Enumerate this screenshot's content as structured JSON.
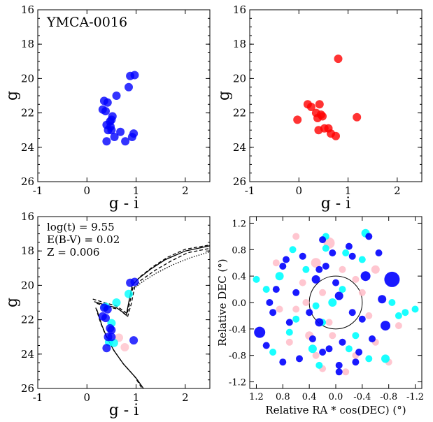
{
  "chart_data": [
    {
      "id": "tl",
      "type": "scatter",
      "annotation": "YMCA-0016",
      "xlabel": "g - i",
      "ylabel": "g",
      "xlim": [
        -1,
        2.5
      ],
      "ylim": [
        26,
        16
      ],
      "xticks": [
        "-1",
        "0",
        "1",
        "2"
      ],
      "yticks": [
        "16",
        "18",
        "20",
        "22",
        "24",
        "26"
      ],
      "series": [
        {
          "color": "#0000ff",
          "points": [
            [
              0.88,
              19.85
            ],
            [
              0.97,
              19.8
            ],
            [
              0.85,
              20.5
            ],
            [
              0.6,
              21.0
            ],
            [
              0.35,
              21.3
            ],
            [
              0.42,
              21.4
            ],
            [
              0.32,
              21.8
            ],
            [
              0.38,
              21.9
            ],
            [
              0.52,
              22.2
            ],
            [
              0.5,
              22.4
            ],
            [
              0.47,
              22.5
            ],
            [
              0.4,
              22.7
            ],
            [
              0.48,
              22.8
            ],
            [
              0.43,
              23.0
            ],
            [
              0.5,
              23.0
            ],
            [
              0.68,
              23.1
            ],
            [
              0.95,
              23.2
            ],
            [
              0.92,
              23.4
            ],
            [
              0.56,
              23.4
            ],
            [
              0.78,
              23.65
            ],
            [
              0.4,
              23.65
            ]
          ]
        }
      ]
    },
    {
      "id": "tr",
      "type": "scatter",
      "xlabel": "g - i",
      "ylabel": "g",
      "xlim": [
        -1,
        2.5
      ],
      "ylim": [
        26,
        16
      ],
      "xticks": [
        "-1",
        "0",
        "1",
        "2"
      ],
      "yticks": [
        "16",
        "18",
        "20",
        "22",
        "24",
        "26"
      ],
      "series": [
        {
          "color": "#ff0000",
          "points": [
            [
              0.8,
              18.85
            ],
            [
              0.18,
              21.5
            ],
            [
              0.25,
              21.65
            ],
            [
              0.42,
              21.5
            ],
            [
              0.35,
              22.0
            ],
            [
              0.45,
              22.1
            ],
            [
              0.38,
              22.3
            ],
            [
              0.48,
              22.2
            ],
            [
              -0.03,
              22.4
            ],
            [
              1.18,
              22.25
            ],
            [
              0.52,
              22.9
            ],
            [
              0.6,
              22.9
            ],
            [
              0.4,
              23.0
            ],
            [
              0.65,
              23.2
            ],
            [
              0.75,
              23.35
            ]
          ]
        }
      ]
    },
    {
      "id": "bl",
      "type": "scatter",
      "annotation": [
        "log(t) = 9.55",
        "E(B-V) = 0.02",
        "Z = 0.006"
      ],
      "xlabel": "g - i",
      "ylabel": "g",
      "xlim": [
        -1,
        2.5
      ],
      "ylim": [
        26,
        16
      ],
      "xticks": [
        "-1",
        "0",
        "1",
        "2"
      ],
      "yticks": [
        "16",
        "18",
        "20",
        "22",
        "24",
        "26"
      ],
      "isochrones": [
        {
          "style": "solid",
          "points": [
            [
              0.15,
              20.95
            ],
            [
              0.38,
              21.15
            ],
            [
              0.6,
              21.3
            ],
            [
              0.75,
              21.6
            ],
            [
              0.8,
              21.75
            ],
            [
              0.85,
              21.0
            ],
            [
              0.92,
              20.0
            ],
            [
              1.05,
              19.6
            ],
            [
              1.3,
              19.05
            ],
            [
              1.6,
              18.5
            ],
            [
              2.0,
              18.0
            ],
            [
              2.5,
              17.7
            ]
          ]
        },
        {
          "style": "dashed",
          "points": [
            [
              0.12,
              20.8
            ],
            [
              0.35,
              21.0
            ],
            [
              0.6,
              21.2
            ],
            [
              0.75,
              21.5
            ],
            [
              0.82,
              21.65
            ],
            [
              0.88,
              20.9
            ],
            [
              0.95,
              19.9
            ],
            [
              1.08,
              19.5
            ],
            [
              1.35,
              18.9
            ],
            [
              1.65,
              18.35
            ],
            [
              2.0,
              17.9
            ],
            [
              2.5,
              17.65
            ]
          ]
        },
        {
          "style": "dashed",
          "points": [
            [
              0.2,
              21.05
            ],
            [
              0.42,
              21.25
            ],
            [
              0.65,
              21.4
            ],
            [
              0.78,
              21.7
            ],
            [
              0.83,
              21.8
            ],
            [
              0.9,
              21.1
            ],
            [
              0.97,
              20.1
            ],
            [
              1.1,
              19.7
            ],
            [
              1.4,
              19.1
            ],
            [
              1.7,
              18.6
            ],
            [
              2.05,
              18.1
            ],
            [
              2.5,
              17.85
            ]
          ]
        },
        {
          "style": "dotted",
          "points": [
            [
              0.95,
              20.2
            ],
            [
              1.1,
              19.85
            ],
            [
              1.4,
              19.3
            ],
            [
              1.75,
              18.8
            ],
            [
              2.1,
              18.4
            ],
            [
              2.5,
              18.05
            ]
          ]
        },
        {
          "style": "solid",
          "points": [
            [
              0.2,
              21.4
            ],
            [
              0.3,
              22.3
            ],
            [
              0.4,
              23.0
            ],
            [
              0.55,
              23.8
            ],
            [
              0.75,
              24.6
            ],
            [
              1.0,
              25.4
            ],
            [
              1.15,
              26.0
            ]
          ]
        },
        {
          "style": "dashed",
          "points": [
            [
              0.18,
              21.3
            ],
            [
              0.28,
              22.2
            ],
            [
              0.38,
              22.9
            ],
            [
              0.53,
              23.7
            ],
            [
              0.72,
              24.5
            ],
            [
              0.97,
              25.3
            ],
            [
              1.12,
              26.0
            ]
          ]
        }
      ],
      "series": [
        {
          "color": "#ffc0cb",
          "points": [
            [
              0.65,
              23.05
            ],
            [
              0.77,
              23.6
            ]
          ]
        },
        {
          "color": "#00ffff",
          "points": [
            [
              0.6,
              21.0
            ],
            [
              0.85,
              20.5
            ],
            [
              0.38,
              21.25
            ],
            [
              0.5,
              22.2
            ],
            [
              0.45,
              23.3
            ],
            [
              0.55,
              23.35
            ]
          ]
        },
        {
          "color": "#0000ff",
          "points": [
            [
              0.88,
              19.85
            ],
            [
              0.97,
              19.8
            ],
            [
              0.35,
              21.3
            ],
            [
              0.42,
              21.4
            ],
            [
              0.32,
              21.8
            ],
            [
              0.38,
              21.9
            ],
            [
              0.47,
              22.5
            ],
            [
              0.5,
              22.6
            ],
            [
              0.43,
              23.0
            ],
            [
              0.5,
              23.0
            ],
            [
              0.95,
              23.2
            ],
            [
              0.4,
              23.65
            ]
          ]
        }
      ]
    },
    {
      "id": "br",
      "type": "scatter",
      "xlabel": "Relative RA * cos(DEC) (°)",
      "ylabel": "Relative DEC (°)",
      "xlim": [
        1.3,
        -1.3
      ],
      "ylim": [
        -1.3,
        1.3
      ],
      "xticks": [
        "1.2",
        "0.8",
        "0.4",
        "0.0",
        "-0.4",
        "-0.8",
        "-1.2"
      ],
      "yticks": [
        "1.2",
        "0.8",
        "0.4",
        "0.0",
        "-0.4",
        "-0.8",
        "-1.2"
      ],
      "circle": {
        "x": 0.0,
        "y": 0.0,
        "r": 0.4
      },
      "series": [
        {
          "color": "#ffc0cb",
          "points": [
            [
              0.6,
              1.0,
              5
            ],
            [
              0.1,
              0.9,
              8
            ],
            [
              0.9,
              0.6,
              5
            ],
            [
              0.7,
              -0.6,
              5
            ],
            [
              0.4,
              -0.5,
              6
            ],
            [
              0.2,
              -1.0,
              5
            ],
            [
              -0.3,
              -0.8,
              5
            ],
            [
              -0.6,
              0.5,
              6
            ],
            [
              0.3,
              0.6,
              7
            ],
            [
              -0.1,
              0.5,
              5
            ],
            [
              -0.5,
              -0.2,
              5
            ],
            [
              0.5,
              0.3,
              5
            ],
            [
              -0.8,
              -0.9,
              5
            ],
            [
              0.85,
              -0.1,
              5
            ],
            [
              0.05,
              -0.5,
              5
            ],
            [
              -0.4,
              0.15,
              5
            ],
            [
              0.2,
              0.15,
              5
            ],
            [
              -0.15,
              -1.05,
              5
            ],
            [
              0.6,
              -0.1,
              5
            ],
            [
              0.3,
              -0.8,
              5
            ],
            [
              -0.6,
              -0.6,
              5
            ],
            [
              0.45,
              0.0,
              5
            ],
            [
              0.1,
              -0.3,
              5
            ],
            [
              -0.3,
              0.35,
              5
            ],
            [
              -0.95,
              -0.35,
              5
            ]
          ]
        },
        {
          "color": "#00ffff",
          "points": [
            [
              -0.45,
              1.05,
              6
            ],
            [
              0.15,
              0.82,
              5
            ],
            [
              -0.4,
              0.65,
              5
            ],
            [
              0.85,
              0.4,
              6
            ],
            [
              1.05,
              0.2,
              5
            ],
            [
              0.95,
              -0.75,
              5
            ],
            [
              0.35,
              -0.7,
              6
            ],
            [
              -0.95,
              -0.2,
              5
            ],
            [
              -1.2,
              -0.1,
              5
            ],
            [
              -0.85,
              0.0,
              5
            ],
            [
              -0.75,
              -0.85,
              6
            ],
            [
              0.05,
              0.0,
              6
            ],
            [
              0.3,
              -0.05,
              5
            ],
            [
              0.65,
              0.8,
              5
            ],
            [
              -0.1,
              0.2,
              5
            ],
            [
              0.2,
              -0.3,
              5
            ],
            [
              0.45,
              0.5,
              5
            ],
            [
              -0.3,
              -0.5,
              5
            ],
            [
              1.2,
              0.35,
              5
            ],
            [
              -0.15,
              0.75,
              5
            ],
            [
              0.6,
              -0.25,
              5
            ],
            [
              -0.5,
              -0.85,
              5
            ],
            [
              0.15,
              1.0,
              5
            ],
            [
              -0.2,
              -0.7,
              5
            ],
            [
              0.7,
              -0.45,
              5
            ],
            [
              -1.05,
              -0.15,
              5
            ],
            [
              0.25,
              -0.95,
              5
            ]
          ]
        },
        {
          "color": "#0000ff",
          "points": [
            [
              -0.85,
              0.35,
              11
            ],
            [
              0.2,
              0.95,
              5
            ],
            [
              0.05,
              0.75,
              5
            ],
            [
              -0.2,
              0.85,
              5
            ],
            [
              0.5,
              0.7,
              5
            ],
            [
              0.75,
              0.65,
              5
            ],
            [
              0.3,
              0.35,
              6
            ],
            [
              -0.45,
              0.4,
              7
            ],
            [
              -0.7,
              0.05,
              6
            ],
            [
              1.15,
              -0.45,
              8
            ],
            [
              0.25,
              -0.3,
              6
            ],
            [
              -0.1,
              -0.6,
              5
            ],
            [
              -0.75,
              -0.35,
              7
            ],
            [
              0.35,
              -0.55,
              5
            ],
            [
              0.7,
              -0.3,
              5
            ],
            [
              1.05,
              -0.65,
              5
            ],
            [
              0.95,
              -0.15,
              5
            ],
            [
              0.8,
              -0.9,
              5
            ],
            [
              -0.3,
              -0.9,
              5
            ],
            [
              0.0,
              0.3,
              5
            ],
            [
              0.1,
              -0.7,
              5
            ],
            [
              -0.05,
              0.1,
              6
            ],
            [
              -0.55,
              -0.55,
              5
            ],
            [
              -0.25,
              0.7,
              5
            ],
            [
              0.4,
              -0.15,
              5
            ],
            [
              0.9,
              0.2,
              5
            ],
            [
              -0.05,
              -0.95,
              5
            ],
            [
              -0.5,
              1.0,
              5
            ],
            [
              -0.25,
              -0.15,
              5
            ],
            [
              0.15,
              0.55,
              5
            ],
            [
              -0.65,
              0.75,
              5
            ],
            [
              0.55,
              -0.85,
              5
            ],
            [
              1.0,
              0.0,
              5
            ],
            [
              -0.35,
              -0.75,
              5
            ],
            [
              0.8,
              0.55,
              5
            ],
            [
              0.25,
              0.5,
              5
            ],
            [
              0.2,
              -0.75,
              5
            ],
            [
              -0.05,
              -1.05,
              5
            ],
            [
              -0.4,
              -0.25,
              5
            ],
            [
              0.6,
              0.15,
              5
            ]
          ]
        }
      ]
    }
  ]
}
